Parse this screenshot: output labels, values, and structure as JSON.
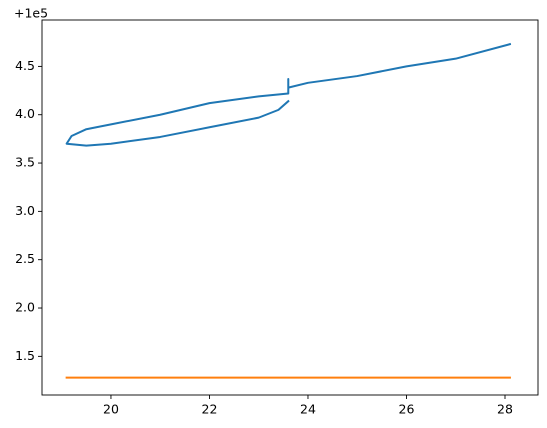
{
  "chart_data": {
    "type": "line",
    "y_offset_label": "+1e5",
    "series": [
      {
        "color": "#1f77b4",
        "x": [
          23.6,
          23.4,
          23.0,
          22.0,
          21.0,
          20.0,
          19.5,
          19.1,
          19.2,
          19.5,
          20.0,
          21.0,
          22.0,
          23.0,
          23.6,
          23.6,
          23.6,
          24.0,
          25.0,
          26.0,
          27.0,
          28.1
        ],
        "values": [
          4.14,
          4.05,
          3.97,
          3.87,
          3.77,
          3.7,
          3.68,
          3.7,
          3.78,
          3.85,
          3.9,
          4.0,
          4.12,
          4.19,
          4.22,
          4.37,
          4.28,
          4.33,
          4.4,
          4.5,
          4.58,
          4.73
        ]
      },
      {
        "color": "#ff7f0e",
        "x": [
          19.1,
          28.1
        ],
        "values": [
          1.28,
          1.28
        ]
      }
    ],
    "xlim": [
      18.6,
      28.67
    ],
    "xticks": [
      20,
      22,
      24,
      26,
      28
    ],
    "ylim": [
      1.1,
      4.98
    ],
    "yticks": [
      1.5,
      {
        "value": 2,
        "label": "2.0"
      },
      2.5,
      {
        "value": 3,
        "label": "3.0"
      },
      3.5,
      {
        "value": 4,
        "label": "4.0"
      },
      4.5
    ]
  }
}
